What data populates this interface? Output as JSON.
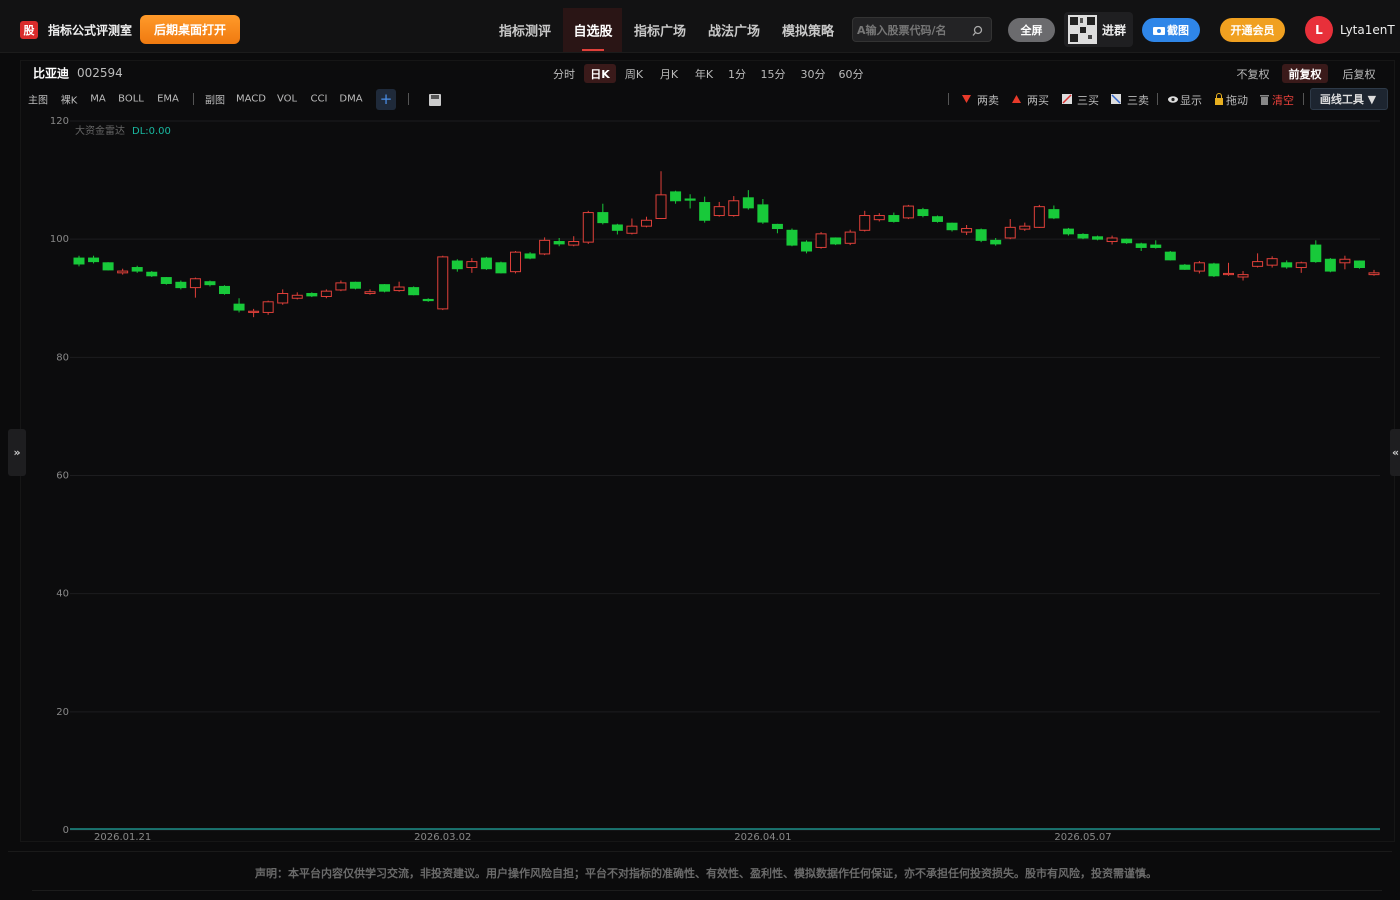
{
  "header": {
    "logo": "股",
    "title": "指标公式评测室",
    "desktop_button": "后期桌面打开",
    "nav": [
      "指标测评",
      "自选股",
      "指标广场",
      "战法广场",
      "模拟策略"
    ],
    "search_placeholder": "A输入股票代码/名",
    "fullscreen": "全屏",
    "join_group": "进群",
    "screenshot": "截图",
    "membership": "开通会员",
    "avatar": "L",
    "username": "Lyta1enT"
  },
  "toolbar": {
    "stock_name": "比亚迪",
    "stock_code": "002594",
    "periods": [
      "分时",
      "日K",
      "周K",
      "月K",
      "年K",
      "1分",
      "15分",
      "30分",
      "60分"
    ],
    "adjust": [
      "不复权",
      "前复权",
      "后复权"
    ],
    "main_label": "主图",
    "main_indicators": [
      "裸K",
      "MA",
      "BOLL",
      "EMA"
    ],
    "sub_label": "副图",
    "sub_indicators": [
      "MACD",
      "VOL",
      "CCI",
      "DMA"
    ],
    "add": "+",
    "signals": [
      "两卖",
      "两买",
      "三买",
      "三卖"
    ],
    "show": "显示",
    "drag": "拖动",
    "clear": "清空",
    "draw_tools": "画线工具 ▼"
  },
  "sidebar": {
    "left_toggle": "»",
    "right_toggle": "«"
  },
  "chart_data": {
    "type": "candlestick",
    "indicator": "大资金雷达",
    "indicator_value": "DL:0.00",
    "up_color": "#e0403a",
    "down_color": "#18c93a",
    "grid": true,
    "ylim": [
      0,
      120
    ],
    "yticks": [
      0,
      20,
      40,
      60,
      80,
      100,
      120
    ],
    "categories": [
      null,
      null,
      null,
      "2026.01.21",
      null,
      null,
      null,
      null,
      null,
      null,
      null,
      null,
      null,
      null,
      null,
      null,
      null,
      null,
      null,
      null,
      null,
      null,
      null,
      null,
      null,
      "2026.03.02",
      null,
      null,
      null,
      null,
      null,
      null,
      null,
      null,
      null,
      null,
      null,
      null,
      null,
      null,
      null,
      null,
      null,
      null,
      null,
      null,
      null,
      "2026.04.01",
      null,
      null,
      null,
      null,
      null,
      null,
      null,
      null,
      null,
      null,
      null,
      null,
      null,
      null,
      null,
      null,
      null,
      null,
      null,
      null,
      null,
      "2026.05.07",
      null,
      null,
      null,
      null,
      null,
      null,
      null,
      null,
      null,
      null,
      null,
      null,
      null,
      null,
      null,
      null,
      null,
      null,
      null,
      null
    ],
    "open": [
      96.8,
      96.8,
      96.0,
      94.3,
      95.2,
      94.4,
      93.5,
      92.7,
      91.8,
      92.8,
      92.0,
      89.0,
      87.6,
      87.6,
      89.2,
      90.0,
      90.8,
      90.3,
      91.4,
      92.7,
      90.8,
      92.3,
      91.3,
      91.8,
      89.8,
      88.2,
      96.3,
      95.2,
      96.8,
      96.0,
      94.5,
      97.5,
      97.5,
      99.6,
      99.0,
      99.5,
      104.5,
      102.4,
      101.0,
      102.2,
      103.5,
      108.0,
      106.8,
      106.2,
      104.0,
      104.0,
      107.0,
      105.8,
      102.5,
      101.5,
      99.5,
      98.6,
      100.2,
      99.3,
      101.5,
      103.3,
      104.0,
      103.6,
      105.0,
      103.8,
      102.7,
      101.2,
      101.6,
      99.8,
      100.2,
      101.7,
      102.0,
      105.0,
      101.7,
      100.8,
      100.4,
      99.6,
      100.0,
      99.2,
      99.0,
      97.8,
      95.6,
      94.6,
      95.8,
      94.0,
      93.6,
      95.4,
      95.6,
      96.0,
      95.2,
      99.0,
      96.6,
      96.0,
      96.3,
      94.0
    ],
    "close": [
      95.8,
      96.2,
      94.8,
      94.6,
      94.6,
      93.8,
      92.5,
      91.8,
      93.3,
      92.3,
      90.8,
      88.0,
      87.8,
      89.4,
      90.8,
      90.5,
      90.4,
      91.2,
      92.6,
      91.7,
      91.1,
      91.2,
      91.9,
      90.6,
      89.6,
      97.0,
      95.0,
      96.2,
      95.0,
      94.3,
      97.8,
      96.8,
      99.8,
      99.2,
      99.6,
      104.5,
      102.8,
      101.5,
      102.2,
      103.2,
      107.5,
      106.5,
      106.6,
      103.2,
      105.5,
      106.5,
      105.3,
      102.9,
      101.8,
      99.0,
      98.0,
      100.9,
      99.2,
      101.2,
      104.0,
      104.0,
      103.0,
      105.6,
      104.0,
      103.0,
      101.6,
      101.8,
      99.8,
      99.2,
      102.0,
      102.2,
      105.5,
      103.6,
      100.9,
      100.2,
      100.0,
      100.2,
      99.4,
      98.6,
      98.6,
      96.5,
      94.9,
      96.0,
      93.8,
      94.2,
      94.0,
      96.2,
      96.7,
      95.3,
      96.0,
      96.2,
      94.6,
      96.6,
      95.2,
      94.3
    ],
    "low": [
      95.4,
      95.9,
      94.7,
      94.0,
      94.3,
      93.6,
      92.3,
      91.5,
      90.1,
      92.0,
      90.6,
      87.6,
      86.8,
      87.2,
      88.9,
      89.8,
      90.2,
      90.0,
      91.2,
      91.5,
      90.6,
      91.0,
      91.1,
      90.5,
      89.4,
      88.0,
      94.5,
      94.3,
      94.8,
      94.2,
      94.2,
      96.6,
      97.3,
      98.8,
      98.8,
      99.2,
      102.5,
      100.8,
      100.8,
      102.0,
      103.4,
      106.0,
      105.2,
      102.8,
      103.8,
      103.8,
      105.0,
      102.6,
      101.0,
      98.8,
      97.6,
      98.4,
      99.0,
      99.0,
      101.3,
      103.0,
      102.8,
      103.4,
      103.7,
      102.8,
      101.3,
      100.7,
      99.5,
      98.9,
      100.0,
      101.4,
      101.9,
      103.4,
      100.6,
      100.0,
      99.8,
      99.1,
      99.2,
      98.0,
      98.4,
      96.4,
      94.8,
      94.2,
      93.6,
      93.8,
      93.0,
      95.2,
      95.2,
      95.0,
      94.3,
      96.0,
      94.4,
      94.9,
      95.0,
      93.8
    ],
    "high": [
      97.2,
      97.2,
      96.1,
      95.0,
      95.5,
      94.6,
      93.6,
      93.0,
      93.5,
      93.0,
      92.2,
      90.0,
      88.2,
      89.6,
      91.5,
      91.0,
      91.0,
      91.5,
      93.0,
      92.8,
      91.5,
      92.4,
      92.8,
      92.0,
      90.0,
      97.2,
      96.6,
      96.8,
      97.0,
      96.2,
      98.0,
      97.8,
      100.3,
      100.2,
      100.5,
      104.8,
      106.0,
      102.6,
      103.5,
      103.8,
      111.5,
      108.2,
      107.6,
      107.2,
      106.3,
      107.3,
      108.3,
      106.8,
      102.6,
      101.8,
      99.8,
      101.2,
      100.3,
      101.6,
      104.8,
      104.4,
      104.5,
      105.8,
      105.3,
      104.0,
      102.8,
      102.4,
      101.8,
      100.2,
      103.4,
      102.8,
      105.8,
      105.7,
      101.9,
      101.0,
      100.6,
      100.6,
      100.1,
      99.4,
      99.8,
      98.0,
      95.8,
      96.3,
      96.0,
      96.0,
      94.6,
      97.6,
      97.1,
      96.4,
      96.2,
      99.8,
      96.8,
      97.2,
      96.4,
      94.8
    ]
  },
  "footer": {
    "disclaimer": "声明：本平台内容仅供学习交流，非投资建议。用户操作风险自担；平台不对指标的准确性、有效性、盈利性、模拟数据作任何保证，亦不承担任何投资损失。股市有风险，投资需谨慎。"
  }
}
